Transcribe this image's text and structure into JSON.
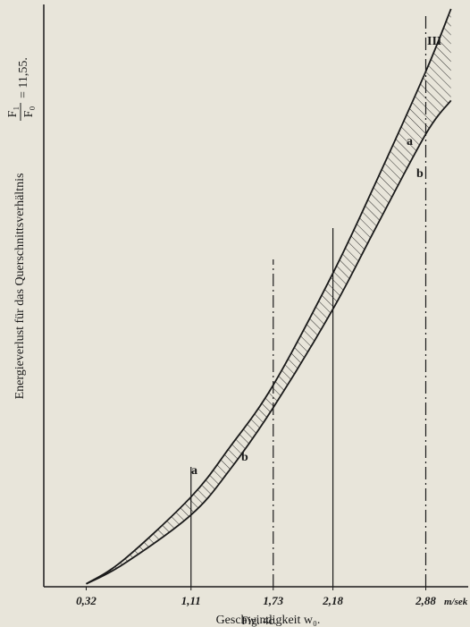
{
  "chart_data": {
    "type": "line",
    "xlabel": "Geschwindigkeit w₀.",
    "x_unit": "m/sek",
    "ylabel": "Energieverlust für das Querschnittsverhältnis",
    "ylabel_numerator": "F₁",
    "ylabel_denominator": "F₀",
    "ylabel_value": "= 11,55.",
    "caption": "Fig. 4c.",
    "annotation": "III",
    "x": [
      0.32,
      0.6,
      1.11,
      1.4,
      1.73,
      2.18,
      2.5,
      2.88,
      3.07
    ],
    "series": [
      {
        "name": "a",
        "color": "#1a1a1a",
        "values": [
          0.5,
          4.6,
          15.5,
          24,
          34.8,
          54.1,
          69.6,
          88.9,
          99.7
        ]
      },
      {
        "name": "b",
        "color": "#1a1a1a",
        "values": [
          0.5,
          3.9,
          12.4,
          20.1,
          30.9,
          47.9,
          61.8,
          78.1,
          83.9
        ]
      }
    ],
    "xlim": [
      0,
      3.2
    ],
    "ylim": [
      0,
      100
    ],
    "xticks": [
      {
        "value": 0.32,
        "label": "0,32"
      },
      {
        "value": 1.11,
        "label": "1,11"
      },
      {
        "value": 1.73,
        "label": "1,73"
      },
      {
        "value": 2.18,
        "label": "2,18"
      },
      {
        "value": 2.88,
        "label": "2,88"
      }
    ],
    "hatched": true
  }
}
